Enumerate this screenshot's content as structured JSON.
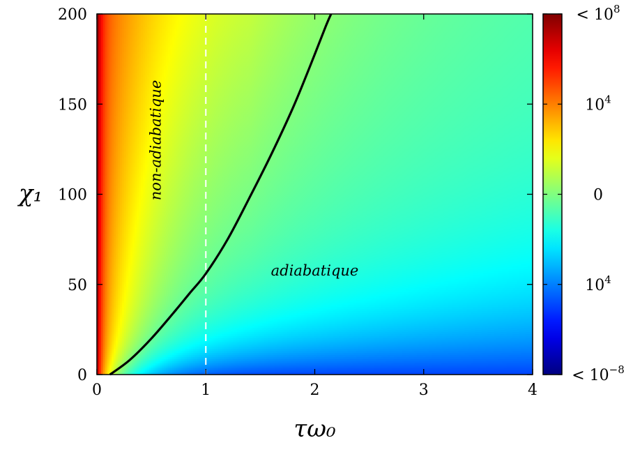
{
  "chart_data": {
    "type": "heatmap",
    "title": "",
    "xlabel": "τω₀",
    "ylabel": "χ₁",
    "xlim": [
      0,
      4
    ],
    "ylim": [
      0,
      200
    ],
    "x_ticks": [
      0,
      1,
      2,
      3,
      4
    ],
    "x_tick_labels": [
      "0",
      "1",
      "2",
      "3",
      "4"
    ],
    "y_ticks": [
      0,
      50,
      100,
      150,
      200
    ],
    "y_tick_labels": [
      "0",
      "50",
      "100",
      "150",
      "200"
    ],
    "colormap": "jet",
    "colorbar": {
      "labels": [
        "< 10^8",
        "10^4",
        "0",
        "10^4",
        "< 10^-8"
      ],
      "label_html": [
        {
          "base": "< 10",
          "exp": "8"
        },
        {
          "base": "10",
          "exp": "4"
        },
        {
          "base": "0",
          "exp": ""
        },
        {
          "base": "10",
          "exp": "4"
        },
        {
          "base": "< 10",
          "exp": "−8"
        }
      ]
    },
    "annotations": [
      {
        "text": "non-adiabatique",
        "x": 0.55,
        "y": 130,
        "rotation": -90
      },
      {
        "text": "adiabatique",
        "x": 2.0,
        "y": 57
      }
    ],
    "boundary_curve": {
      "x": [
        0.12,
        0.3,
        0.5,
        0.7,
        0.85,
        1.0,
        1.2,
        1.4,
        1.6,
        1.8,
        1.95,
        2.1,
        2.15
      ],
      "y": [
        0,
        8,
        20,
        34,
        45,
        56,
        75,
        98,
        122,
        148,
        170,
        193,
        200
      ]
    },
    "vertical_line": {
      "x": 1,
      "style": "dashed",
      "color": "#ffffff"
    },
    "grid": false
  }
}
